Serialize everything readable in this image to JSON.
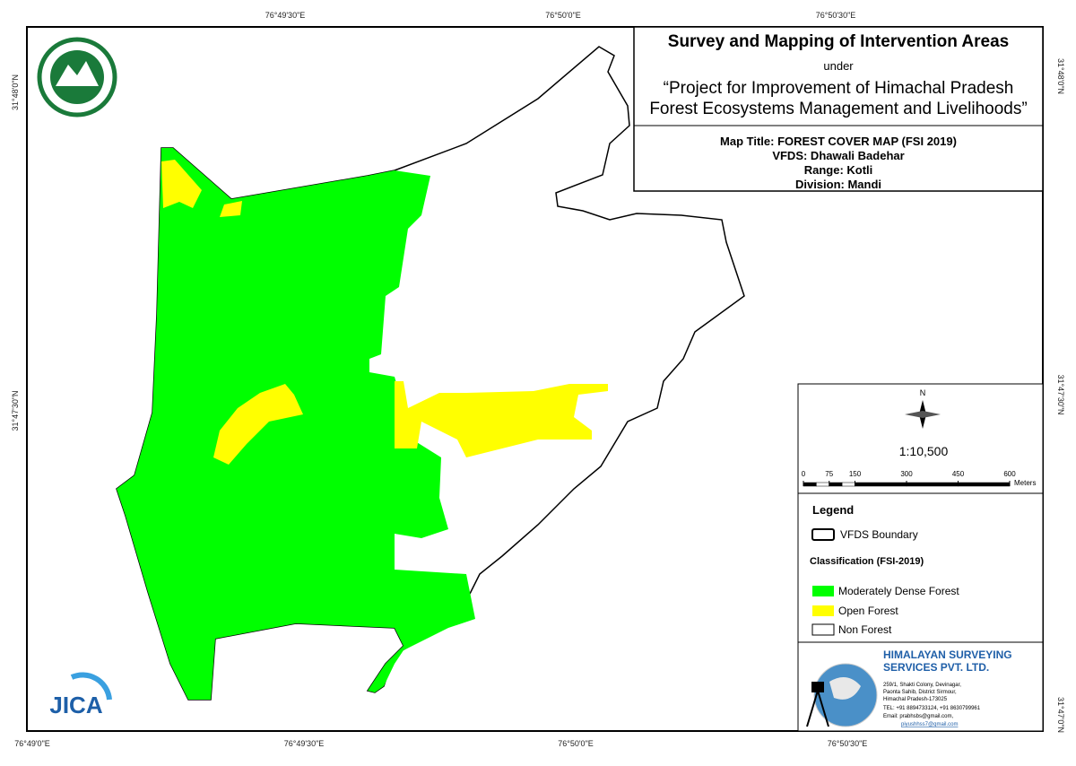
{
  "graticule": {
    "top": [
      "76°49'30\"E",
      "76°50'0\"E",
      "76°50'30\"E"
    ],
    "bottom": [
      "76°49'0\"E",
      "76°49'30\"E",
      "76°50'0\"E",
      "76°50'30\"E"
    ],
    "left": [
      "31°48'0\"N",
      "31°47'30\"N"
    ],
    "right": [
      "31°48'0\"N",
      "31°47'30\"N",
      "31°47'0\"N"
    ]
  },
  "header": {
    "title": "Survey and Mapping of Intervention Areas",
    "under": "under",
    "project_line1": "“Project for Improvement of Himachal Pradesh",
    "project_line2": "Forest Ecosystems Management and Livelihoods”"
  },
  "map_info": {
    "map_title": "Map Title: FOREST COVER MAP (FSI 2019)",
    "vfds": "VFDS: Dhawali Badehar",
    "range": "Range: Kotli",
    "division": "Division: Mandi"
  },
  "north": "N",
  "scale": "1:10,500",
  "scale_bar": {
    "ticks": [
      0,
      75,
      150,
      300,
      450,
      600
    ],
    "unit": "Meters"
  },
  "legend": {
    "title": "Legend",
    "boundary": "VFDS Boundary",
    "classification_title": "Classification (FSI-2019)",
    "items": [
      "Moderately Dense Forest",
      "Open Forest",
      "Non Forest"
    ]
  },
  "company": {
    "name_line1": "HIMALAYAN SURVEYING",
    "name_line2": "SERVICES PVT. LTD.",
    "address": [
      "259/1, Shakti Colony, Devinagar,",
      "Paonta Sahib, District Sirmour,",
      "Himachal Pradesh-173025",
      "TEL: +91 8894733124, +91 8630799961",
      "Email: prabhsbs@gmail.com,",
      "piyushhss7@gmail.com"
    ]
  },
  "jica": "JICA"
}
